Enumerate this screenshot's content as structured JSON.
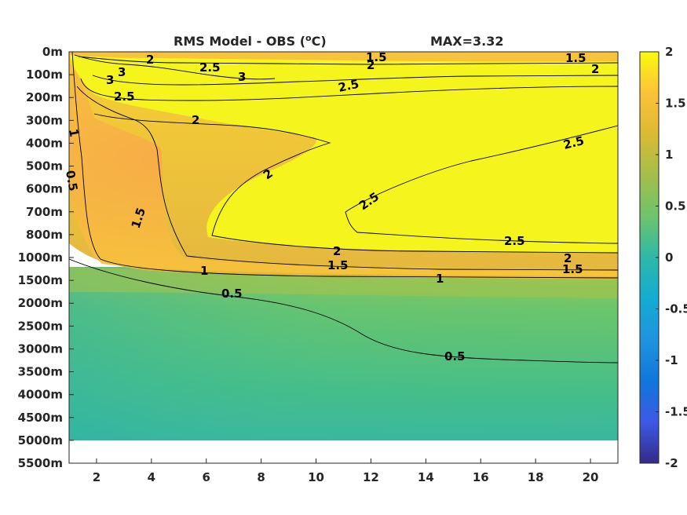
{
  "chart_data": {
    "type": "heatmap",
    "title": "RMS Model - OBS (",
    "title_unit_sup": "o",
    "title_unit_tail": "C)",
    "max_label": "MAX=3.32",
    "x_ticks": [
      "2",
      "4",
      "6",
      "8",
      "10",
      "12",
      "14",
      "16",
      "18",
      "20"
    ],
    "x_values": [
      2,
      4,
      6,
      8,
      10,
      12,
      14,
      16,
      18,
      20
    ],
    "xlim": [
      1,
      21
    ],
    "y_ticks": [
      "0m",
      "100m",
      "200m",
      "300m",
      "400m",
      "500m",
      "600m",
      "700m",
      "800m",
      "1000m",
      "1500m",
      "2000m",
      "2500m",
      "3000m",
      "3500m",
      "4000m",
      "4500m",
      "5000m",
      "5500m"
    ],
    "colorbar": {
      "ticks": [
        "2",
        "1.5",
        "1",
        "0.5",
        "0",
        "-0.5",
        "-1",
        "-1.5",
        "-2"
      ],
      "range": [
        -2,
        2
      ],
      "colormap": "parula"
    },
    "contour_levels": [
      0.5,
      1,
      1.5,
      2,
      2.5,
      3
    ],
    "contour_labels": [
      {
        "text": "2"
      },
      {
        "text": "1.5"
      },
      {
        "text": "1.5"
      },
      {
        "text": "2"
      },
      {
        "text": "2"
      },
      {
        "text": "3"
      },
      {
        "text": "3"
      },
      {
        "text": "2.5"
      },
      {
        "text": "3"
      },
      {
        "text": "2.5"
      },
      {
        "text": "2.5"
      },
      {
        "text": "2"
      },
      {
        "text": "1"
      },
      {
        "text": "0.5"
      },
      {
        "text": "1.5"
      },
      {
        "text": "2"
      },
      {
        "text": "2.5"
      },
      {
        "text": "2.5"
      },
      {
        "text": "2.5"
      },
      {
        "text": "2"
      },
      {
        "text": "1.5"
      },
      {
        "text": "2"
      },
      {
        "text": "1.5"
      },
      {
        "text": "1"
      },
      {
        "text": "0.5"
      },
      {
        "text": "0.5"
      }
    ],
    "colors": {
      "yellow": "#f5f41d",
      "orange": "#f8ba3d",
      "olive": "#c8c134",
      "green": "#64c870",
      "teal": "#35b7a4",
      "colorbar_low": "#352a87",
      "colorbar_high": "#f9fb0e"
    }
  }
}
